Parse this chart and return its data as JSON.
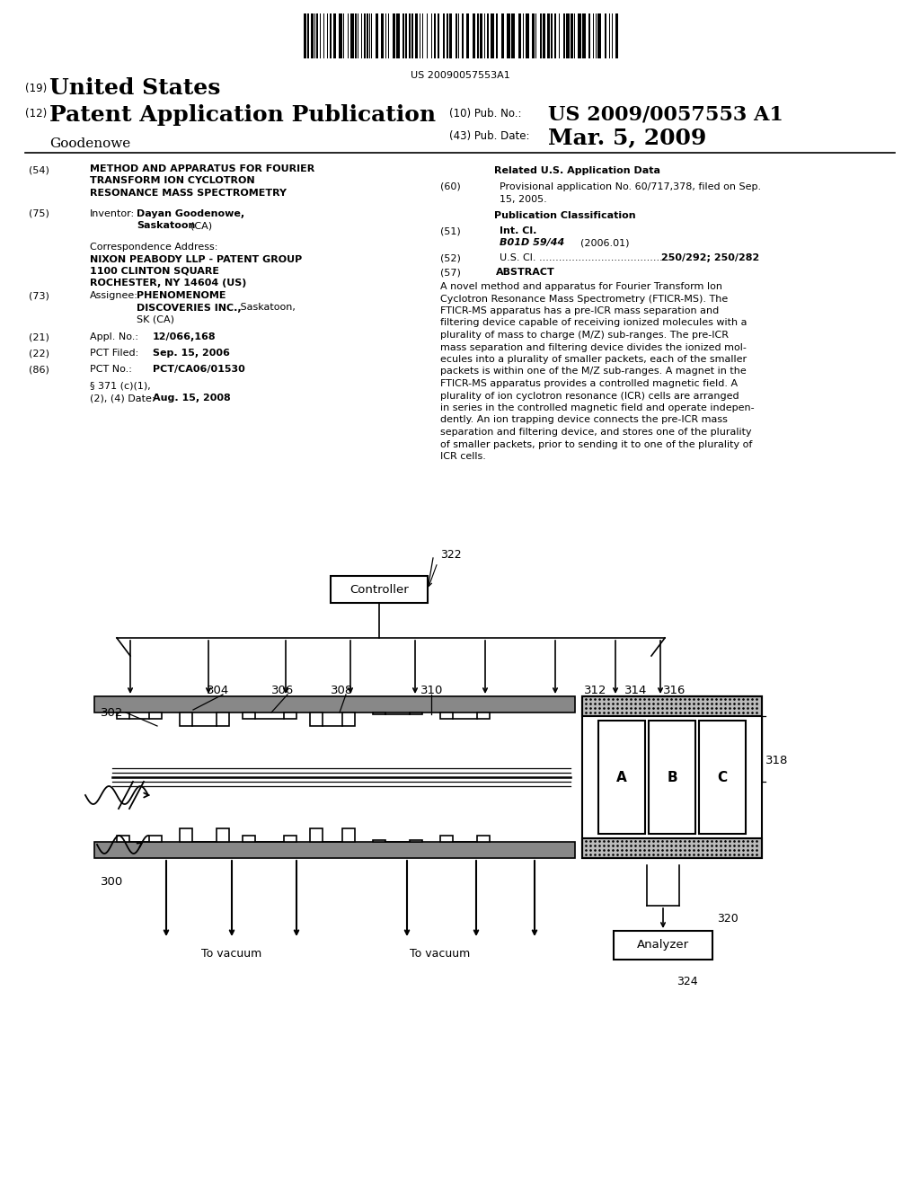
{
  "bg_color": "#ffffff",
  "barcode_text": "US 20090057553A1",
  "header_19_text": "United States",
  "header_12_text": "Patent Application Publication",
  "header_10_label": "(10) Pub. No.:",
  "header_10_value": "US 2009/0057553 A1",
  "header_43_label": "(43) Pub. Date:",
  "header_43_value": "Mar. 5, 2009",
  "inventor_name": "Goodenowe",
  "field54_title_lines": [
    "METHOD AND APPARATUS FOR FOURIER",
    "TRANSFORM ION CYCLOTRON",
    "RESONANCE MASS SPECTROMETRY"
  ],
  "related_data_header": "Related U.S. Application Data",
  "pub_class_header": "Publication Classification",
  "field51_class": "B01D 59/44",
  "field51_year": "(2006.01)",
  "field57_header": "ABSTRACT",
  "abstract_lines": [
    "A novel method and apparatus for Fourier Transform Ion",
    "Cyclotron Resonance Mass Spectrometry (FTICR-MS). The",
    "FTICR-MS apparatus has a pre-ICR mass separation and",
    "filtering device capable of receiving ionized molecules with a",
    "plurality of mass to charge (M/Z) sub-ranges. The pre-ICR",
    "mass separation and filtering device divides the ionized mol-",
    "ecules into a plurality of smaller packets, each of the smaller",
    "packets is within one of the M/Z sub-ranges. A magnet in the",
    "FTICR-MS apparatus provides a controlled magnetic field. A",
    "plurality of ion cyclotron resonance (ICR) cells are arranged",
    "in series in the controlled magnetic field and operate indepen-",
    "dently. An ion trapping device connects the pre-ICR mass",
    "separation and filtering device, and stores one of the plurality",
    "of smaller packets, prior to sending it to one of the plurality of",
    "ICR cells."
  ],
  "corr_addr_lines": [
    "NIXON PEABODY LLP - PATENT GROUP",
    "1100 CLINTON SQUARE",
    "ROCHESTER, NY 14604 (US)"
  ],
  "field21_value": "12/066,168",
  "field22_value": "Sep. 15, 2006",
  "field86_value": "PCT/CA06/01530",
  "field86b_date": "Aug. 15, 2008",
  "diagram_abc": [
    "A",
    "B",
    "C"
  ]
}
